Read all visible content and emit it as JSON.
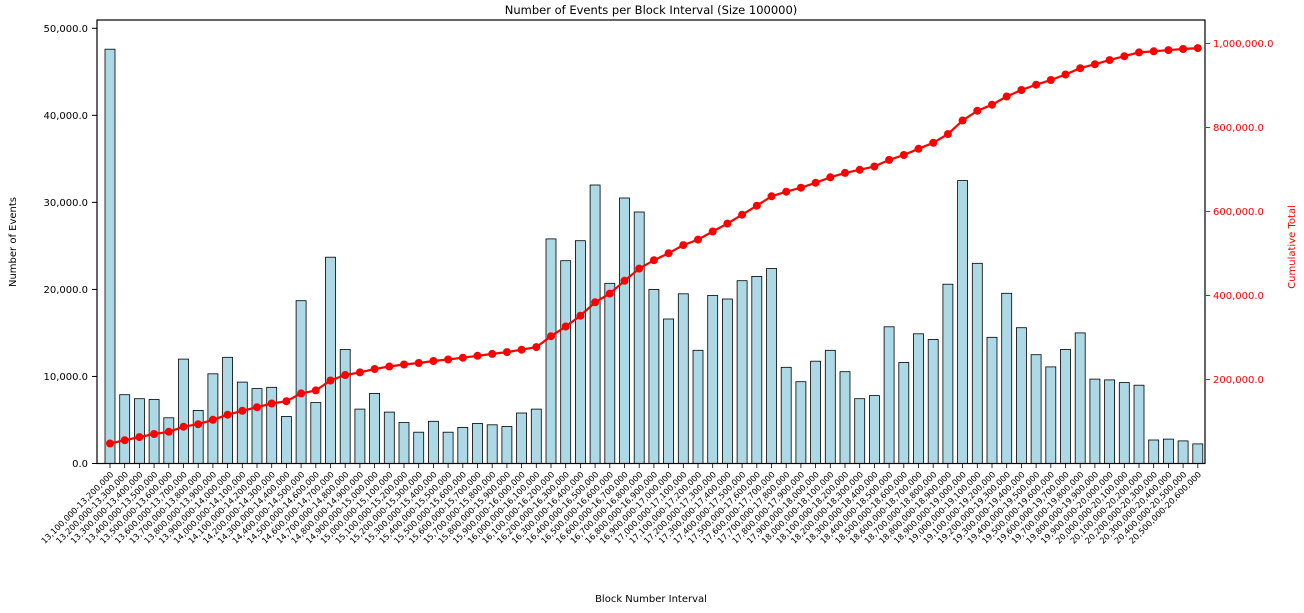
{
  "chart_data": {
    "type": "bar",
    "combo": "bar+line",
    "title": "Number of Events per Block Interval (Size 100000)",
    "xlabel": "Block Number Interval",
    "ylabel_left": "Number of Events",
    "ylabel_right": "Cumulative Total",
    "grid": "off",
    "legend": "none",
    "categories": [
      "13,100,000-13,200,000",
      "13,200,000-13,300,000",
      "13,300,000-13,400,000",
      "13,400,000-13,500,000",
      "13,500,000-13,600,000",
      "13,600,000-13,700,000",
      "13,700,000-13,800,000",
      "13,800,000-13,900,000",
      "13,900,000-14,000,000",
      "14,000,000-14,100,000",
      "14,100,000-14,200,000",
      "14,200,000-14,300,000",
      "14,300,000-14,400,000",
      "14,400,000-14,500,000",
      "14,500,000-14,600,000",
      "14,600,000-14,700,000",
      "14,700,000-14,800,000",
      "14,800,000-14,900,000",
      "14,900,000-15,000,000",
      "15,000,000-15,100,000",
      "15,100,000-15,200,000",
      "15,200,000-15,300,000",
      "15,300,000-15,400,000",
      "15,400,000-15,500,000",
      "15,500,000-15,600,000",
      "15,600,000-15,700,000",
      "15,700,000-15,800,000",
      "15,800,000-15,900,000",
      "15,900,000-16,000,000",
      "16,000,000-16,100,000",
      "16,100,000-16,200,000",
      "16,200,000-16,300,000",
      "16,300,000-16,400,000",
      "16,400,000-16,500,000",
      "16,500,000-16,600,000",
      "16,600,000-16,700,000",
      "16,700,000-16,800,000",
      "16,800,000-16,900,000",
      "16,900,000-17,000,000",
      "17,000,000-17,100,000",
      "17,100,000-17,200,000",
      "17,200,000-17,300,000",
      "17,300,000-17,400,000",
      "17,400,000-17,500,000",
      "17,500,000-17,600,000",
      "17,600,000-17,700,000",
      "17,700,000-17,800,000",
      "17,800,000-17,900,000",
      "17,900,000-18,000,000",
      "18,000,000-18,100,000",
      "18,100,000-18,200,000",
      "18,200,000-18,300,000",
      "18,300,000-18,400,000",
      "18,400,000-18,500,000",
      "18,500,000-18,600,000",
      "18,600,000-18,700,000",
      "18,700,000-18,800,000",
      "18,800,000-18,900,000",
      "18,900,000-19,000,000",
      "19,000,000-19,100,000",
      "19,100,000-19,200,000",
      "19,200,000-19,300,000",
      "19,300,000-19,400,000",
      "19,400,000-19,500,000",
      "19,500,000-19,600,000",
      "19,600,000-19,700,000",
      "19,700,000-19,800,000",
      "19,800,000-19,900,000",
      "19,900,000-20,000,000",
      "20,000,000-20,100,000",
      "20,100,000-20,200,000",
      "20,200,000-20,300,000",
      "20,300,000-20,400,000",
      "20,400,000-20,500,000",
      "20,500,000-20,600,000"
    ],
    "series": [
      {
        "name": "events_per_interval",
        "type": "bar",
        "color": "#ADD8E6",
        "edge_color": "#000000",
        "values": [
          47600,
          7900,
          7450,
          7350,
          5250,
          12000,
          6100,
          10300,
          12200,
          9350,
          8600,
          8750,
          5400,
          18700,
          7000,
          23700,
          13100,
          6250,
          8050,
          5900,
          4700,
          3600,
          4850,
          3600,
          4150,
          4600,
          4450,
          4250,
          5800,
          6250,
          25800,
          23300,
          25600,
          32000,
          20700,
          30500,
          28900,
          20000,
          16600,
          19500,
          13000,
          19300,
          18900,
          21000,
          21500,
          22400,
          11050,
          9400,
          11750,
          13000,
          10550,
          7450,
          7800,
          15700,
          11600,
          14900,
          14250,
          20600,
          32500,
          23000,
          14500,
          19550,
          15600,
          12500,
          11100,
          13100,
          15000,
          9700,
          9600,
          9300,
          9000,
          2700,
          2800,
          2600,
          2250
        ]
      },
      {
        "name": "cumulative_total",
        "type": "line",
        "color": "#FF0000",
        "values": [
          47600,
          55500,
          62950,
          70300,
          75550,
          87550,
          93650,
          103950,
          116150,
          125500,
          134100,
          142850,
          148250,
          166950,
          173950,
          197650,
          210750,
          217000,
          225050,
          230950,
          235650,
          239250,
          244100,
          247700,
          251850,
          256450,
          260900,
          265150,
          270950,
          277200,
          303000,
          326300,
          351900,
          383900,
          404600,
          435100,
          464000,
          484000,
          500600,
          520100,
          533100,
          552400,
          571300,
          592300,
          613800,
          636200,
          647250,
          656650,
          668400,
          681400,
          691950,
          699400,
          707200,
          722900,
          734500,
          749400,
          763650,
          784250,
          816750,
          839750,
          854250,
          873800,
          889400,
          901900,
          913000,
          926100,
          941100,
          950800,
          960400,
          969700,
          978700,
          981400,
          984200,
          986800,
          989050
        ]
      }
    ],
    "left_axis": {
      "tick_labels": [
        "0.0",
        "10,000.0",
        "20,000.0",
        "30,000.0",
        "40,000.0",
        "50,000.0"
      ],
      "tick_values": [
        0,
        10000,
        20000,
        30000,
        40000,
        50000
      ],
      "range": [
        0,
        51000
      ],
      "color": "#000000"
    },
    "right_axis": {
      "tick_labels": [
        "200,000.0",
        "400,000.0",
        "600,000.0",
        "800,000.0",
        "1,000,000.0"
      ],
      "tick_values": [
        200000,
        400000,
        600000,
        800000,
        1000000
      ],
      "range": [
        0,
        1070000
      ],
      "color": "#FF0000"
    }
  }
}
